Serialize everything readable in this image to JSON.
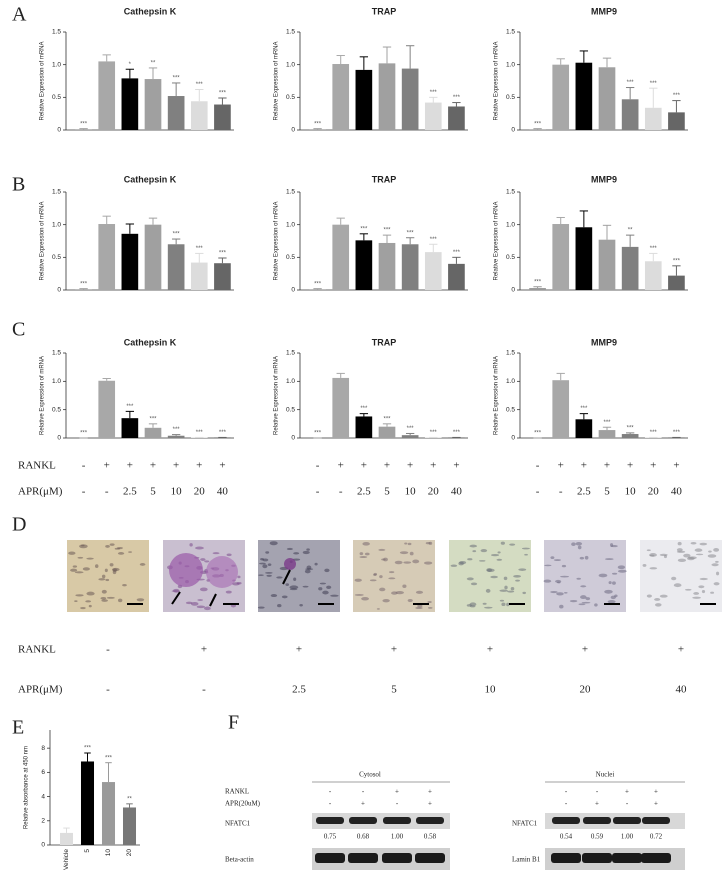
{
  "panel_labels": [
    "A",
    "B",
    "C",
    "D",
    "E",
    "F"
  ],
  "chart_data": [
    {
      "type": "bar",
      "title": "Cathepsin K",
      "ylabel": "Relative Expression of mRNA",
      "values": [
        0.01,
        1.05,
        0.79,
        0.78,
        0.52,
        0.44,
        0.39
      ],
      "errors": [
        0.01,
        0.1,
        0.14,
        0.17,
        0.2,
        0.18,
        0.1
      ],
      "annotations": [
        "***",
        null,
        "*",
        "**",
        "***",
        "***",
        "***"
      ],
      "colors": [
        "#9a9a9a",
        "#a8a8a8",
        "#000000",
        "#a0a0a0",
        "#808080",
        "#dcdcdc",
        "#666666"
      ],
      "ylim": [
        0,
        1.5
      ],
      "yticks": [
        0,
        0.5,
        {
          "value": 1,
          "label": "1.0"
        },
        1.5
      ]
    },
    {
      "type": "bar",
      "title": "TRAP",
      "ylabel": "Relative Expression of mRNA",
      "values": [
        0.01,
        1.01,
        0.92,
        1.02,
        0.94,
        0.42,
        0.36
      ],
      "errors": [
        0.01,
        0.13,
        0.2,
        0.25,
        0.35,
        0.08,
        0.06
      ],
      "annotations": [
        "***",
        null,
        null,
        null,
        null,
        "***",
        "***"
      ],
      "colors": [
        "#9a9a9a",
        "#a8a8a8",
        "#000000",
        "#a0a0a0",
        "#808080",
        "#dcdcdc",
        "#666666"
      ],
      "ylim": [
        0,
        1.5
      ],
      "yticks": [
        0,
        0.5,
        {
          "value": 1,
          "label": "1.0"
        },
        1.5
      ]
    },
    {
      "type": "bar",
      "title": "MMP9",
      "ylabel": "Relative Expression of mRNA",
      "values": [
        0.01,
        1.0,
        1.03,
        0.96,
        0.47,
        0.34,
        0.27
      ],
      "errors": [
        0.01,
        0.09,
        0.18,
        0.14,
        0.18,
        0.3,
        0.18
      ],
      "annotations": [
        "***",
        null,
        null,
        null,
        "***",
        "***",
        "***"
      ],
      "colors": [
        "#9a9a9a",
        "#a8a8a8",
        "#000000",
        "#a0a0a0",
        "#808080",
        "#dcdcdc",
        "#666666"
      ],
      "ylim": [
        0,
        1.5
      ],
      "yticks": [
        0,
        0.5,
        {
          "value": 1,
          "label": "1.0"
        },
        1.5
      ]
    },
    {
      "type": "bar",
      "title": "Cathepsin K",
      "ylabel": "Relative Expression of mRNA",
      "values": [
        0.01,
        1.01,
        0.86,
        1.0,
        0.7,
        0.42,
        0.41
      ],
      "errors": [
        0.01,
        0.12,
        0.15,
        0.1,
        0.08,
        0.14,
        0.08
      ],
      "annotations": [
        "***",
        null,
        null,
        null,
        "***",
        "***",
        "***"
      ],
      "colors": [
        "#9a9a9a",
        "#a8a8a8",
        "#000000",
        "#a0a0a0",
        "#808080",
        "#dcdcdc",
        "#666666"
      ],
      "ylim": [
        0,
        1.5
      ],
      "yticks": [
        0,
        0.5,
        {
          "value": 1,
          "label": "1.0"
        },
        1.5
      ]
    },
    {
      "type": "bar",
      "title": "TRAP",
      "ylabel": "Relative Expression of mRNA",
      "values": [
        0.01,
        1.0,
        0.76,
        0.72,
        0.7,
        0.58,
        0.4
      ],
      "errors": [
        0.01,
        0.1,
        0.1,
        0.12,
        0.1,
        0.12,
        0.1
      ],
      "annotations": [
        "***",
        null,
        "***",
        "***",
        "***",
        "***",
        "***"
      ],
      "colors": [
        "#9a9a9a",
        "#a8a8a8",
        "#000000",
        "#a0a0a0",
        "#808080",
        "#dcdcdc",
        "#666666"
      ],
      "ylim": [
        0,
        1.5
      ],
      "yticks": [
        0,
        0.5,
        {
          "value": 1,
          "label": "1.0"
        },
        1.5
      ]
    },
    {
      "type": "bar",
      "title": "MMP9",
      "ylabel": "Relative Expression of mRNA",
      "values": [
        0.03,
        1.01,
        0.96,
        0.77,
        0.66,
        0.44,
        0.22
      ],
      "errors": [
        0.02,
        0.1,
        0.25,
        0.22,
        0.18,
        0.12,
        0.15
      ],
      "annotations": [
        "***",
        null,
        null,
        null,
        "**",
        "***",
        "***"
      ],
      "colors": [
        "#9a9a9a",
        "#a8a8a8",
        "#000000",
        "#a0a0a0",
        "#808080",
        "#dcdcdc",
        "#666666"
      ],
      "ylim": [
        0,
        1.5
      ],
      "yticks": [
        0,
        0.5,
        {
          "value": 1,
          "label": "1.0"
        },
        1.5
      ]
    },
    {
      "type": "bar",
      "title": "Cathepsin K",
      "ylabel": "Relative Expression of mRNA",
      "values": [
        0,
        1.01,
        0.35,
        0.18,
        0.04,
        0.01,
        0.01
      ],
      "errors": [
        0,
        0.04,
        0.12,
        0.07,
        0.02,
        0,
        0
      ],
      "annotations": [
        "***",
        null,
        "***",
        "***",
        "***",
        "***",
        "***"
      ],
      "colors": [
        "#9a9a9a",
        "#a8a8a8",
        "#000000",
        "#a0a0a0",
        "#808080",
        "#dcdcdc",
        "#666666"
      ],
      "ylim": [
        0,
        1.5
      ],
      "yticks": [
        0,
        0.5,
        {
          "value": 1,
          "label": "1.0"
        },
        1.5
      ]
    },
    {
      "type": "bar",
      "title": "TRAP",
      "ylabel": "Relative Expression of mRNA",
      "values": [
        0,
        1.06,
        0.38,
        0.2,
        0.05,
        0.01,
        0.01
      ],
      "errors": [
        0,
        0.08,
        0.05,
        0.05,
        0.03,
        0,
        0
      ],
      "annotations": [
        "***",
        null,
        "***",
        "***",
        "***",
        "***",
        "***"
      ],
      "colors": [
        "#9a9a9a",
        "#a8a8a8",
        "#000000",
        "#a0a0a0",
        "#808080",
        "#dcdcdc",
        "#666666"
      ],
      "ylim": [
        0,
        1.5
      ],
      "yticks": [
        0,
        0.5,
        {
          "value": 1,
          "label": "1.0"
        },
        1.5
      ]
    },
    {
      "type": "bar",
      "title": "MMP9",
      "ylabel": "Relative Expression of mRNA",
      "values": [
        0,
        1.02,
        0.33,
        0.14,
        0.07,
        0.01,
        0.01
      ],
      "errors": [
        0,
        0.12,
        0.1,
        0.05,
        0.02,
        0,
        0
      ],
      "annotations": [
        "***",
        null,
        "***",
        "***",
        "***",
        "***",
        "***"
      ],
      "colors": [
        "#9a9a9a",
        "#a8a8a8",
        "#000000",
        "#a0a0a0",
        "#808080",
        "#dcdcdc",
        "#666666"
      ],
      "ylim": [
        0,
        1.5
      ],
      "yticks": [
        0,
        0.5,
        {
          "value": 1,
          "label": "1.0"
        },
        1.5
      ]
    },
    {
      "type": "bar",
      "ylabel": "Relative absorbance at 450 nm",
      "categories": [
        "Vehicle",
        "5",
        "10",
        "20"
      ],
      "values": [
        1.0,
        6.9,
        5.2,
        3.1
      ],
      "errors": [
        0.4,
        0.7,
        1.6,
        0.3
      ],
      "annotations": [
        null,
        "***",
        "***",
        "**"
      ],
      "colors": [
        "#dddddd",
        "#000000",
        "#9a9a9a",
        "#777777"
      ],
      "ylim": [
        0,
        9.5
      ],
      "yticks": [
        0,
        2,
        4,
        6,
        8
      ]
    }
  ],
  "treatments": [
    {
      "label": "RANKL",
      "values": [
        "-",
        "+",
        "+",
        "+",
        "+",
        "+",
        "+"
      ]
    },
    {
      "label": "APR(μM)",
      "values": [
        "-",
        "-",
        "2.5",
        "5",
        "10",
        "20",
        "40"
      ]
    }
  ],
  "western": {
    "cytosol": {
      "header": "Cytosol",
      "rows": [
        {
          "label": "RANKL",
          "values": [
            "-",
            "-",
            "+",
            "+"
          ]
        },
        {
          "label": "APR(20uM)",
          "values": [
            "-",
            "+",
            "-",
            "+"
          ]
        }
      ],
      "target": "NFATC1",
      "ratios": [
        "0.75",
        "0.68",
        "1.00",
        "0.58"
      ],
      "control": "Beta-actin"
    },
    "nuclei": {
      "header": "Nuclei",
      "rows": [
        {
          "values": [
            "-",
            "-",
            "+",
            "+"
          ]
        },
        {
          "values": [
            "-",
            "+",
            "-",
            "+"
          ]
        }
      ],
      "target": "NFATC1",
      "ratios": [
        "0.54",
        "0.59",
        "1.00",
        "0.72"
      ],
      "control": "Lamin B1"
    }
  }
}
